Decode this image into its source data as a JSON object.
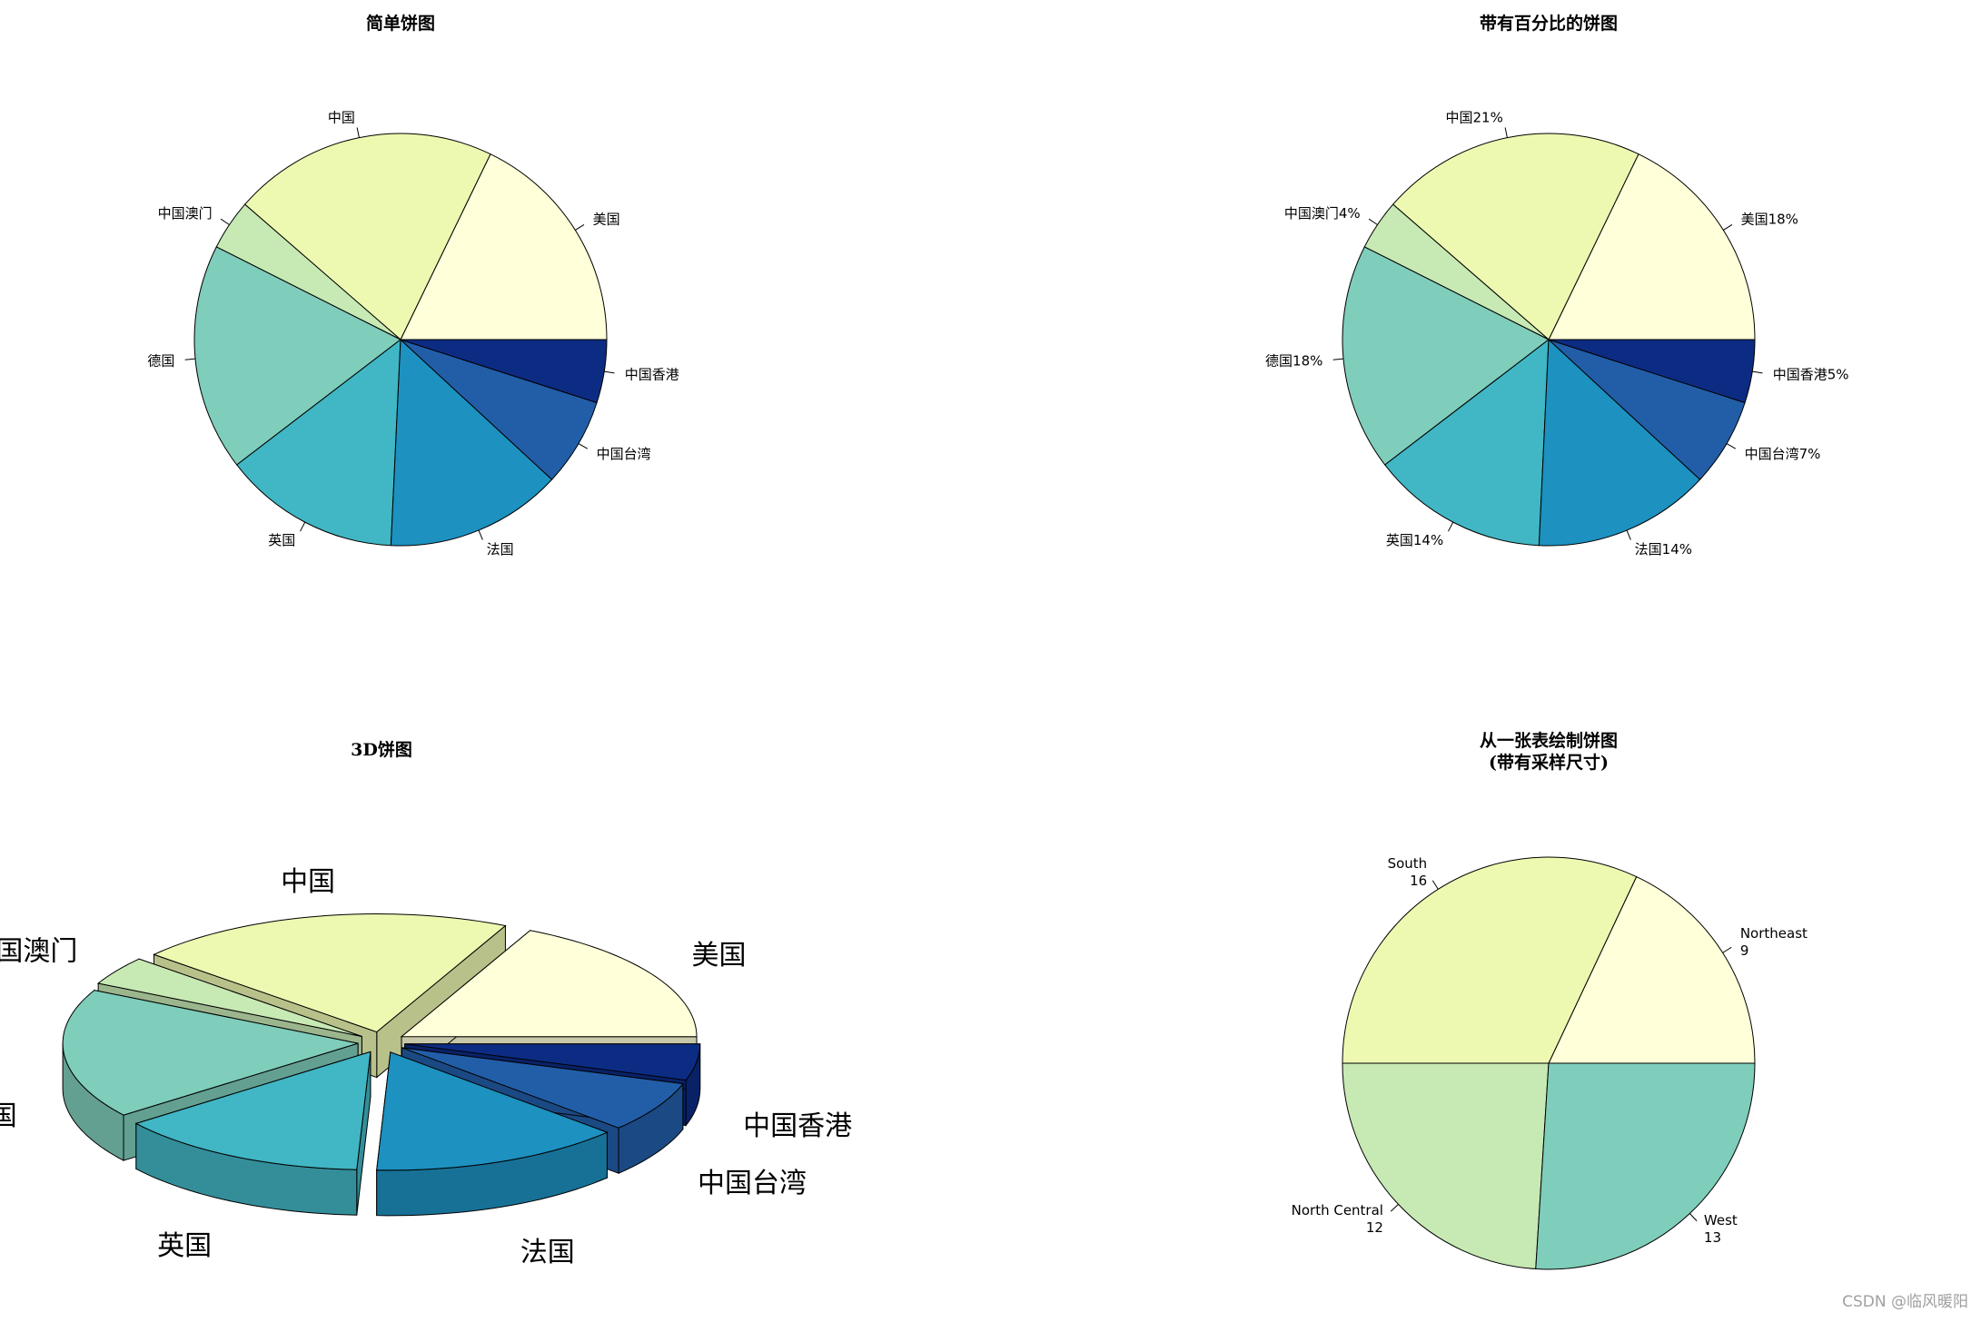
{
  "chart_data": [
    {
      "type": "pie",
      "title": "简单饼图",
      "categories": [
        "美国",
        "中国",
        "中国澳门",
        "德国",
        "英国",
        "法国",
        "中国台湾",
        "中国香港"
      ],
      "values": [
        18,
        21,
        4,
        18,
        14,
        14,
        7,
        5
      ],
      "labels": [
        "美国",
        "中国",
        "中国澳门",
        "德国",
        "英国",
        "法国",
        "中国台湾",
        "中国香港"
      ],
      "colors": [
        "#FFFFD9",
        "#EDF8B1",
        "#C7E9B4",
        "#7FCDBB",
        "#41B6C4",
        "#1D91C0",
        "#225EA8",
        "#0C2C84"
      ]
    },
    {
      "type": "pie",
      "title": "带有百分比的饼图",
      "categories": [
        "美国",
        "中国",
        "中国澳门",
        "德国",
        "英国",
        "法国",
        "中国台湾",
        "中国香港"
      ],
      "values": [
        18,
        21,
        4,
        18,
        14,
        14,
        7,
        5
      ],
      "labels": [
        "美国18%",
        "中国21%",
        "中国澳门4%",
        "德国18%",
        "英国14%",
        "法国14%",
        "中国台湾7%",
        "中国香港5%"
      ],
      "colors": [
        "#FFFFD9",
        "#EDF8B1",
        "#C7E9B4",
        "#7FCDBB",
        "#41B6C4",
        "#1D91C0",
        "#225EA8",
        "#0C2C84"
      ]
    },
    {
      "type": "pie",
      "title": "3D饼图",
      "style": "3d-exploded",
      "categories": [
        "美国",
        "中国",
        "中国澳门",
        "德国",
        "英国",
        "法国",
        "中国台湾",
        "中国香港"
      ],
      "values": [
        18,
        21,
        4,
        18,
        14,
        14,
        7,
        5
      ],
      "labels": [
        "美国",
        "中国",
        "中国澳门",
        "德国",
        "英国",
        "法国",
        "中国台湾",
        "中国香港"
      ],
      "colors": [
        "#FFFFD9",
        "#EDF8B1",
        "#C7E9B4",
        "#7FCDBB",
        "#41B6C4",
        "#1D91C0",
        "#225EA8",
        "#0C2C84"
      ]
    },
    {
      "type": "pie",
      "title": "从一张表绘制饼图",
      "subtitle": "(带有采样尺寸)",
      "categories": [
        "Northeast",
        "South",
        "North Central",
        "West"
      ],
      "values": [
        9,
        16,
        12,
        13
      ],
      "labels": [
        "Northeast",
        "South",
        "North Central",
        "West"
      ],
      "value_labels": [
        "9",
        "16",
        "12",
        "13"
      ],
      "colors": [
        "#FFFFD9",
        "#EDF8B1",
        "#C7E9B4",
        "#7FCDBB"
      ]
    }
  ],
  "watermark": "CSDN @临风暖阳"
}
